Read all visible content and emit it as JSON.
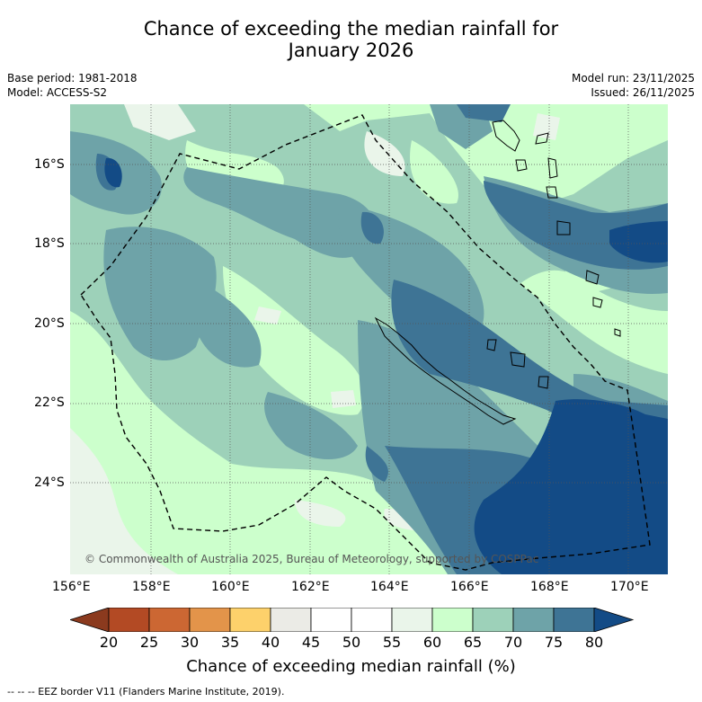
{
  "title": {
    "line1": "Chance of exceeding the median rainfall for",
    "line2": "January 2026"
  },
  "meta_left": {
    "base_period": "Base period: 1981-2018",
    "model": "Model: ACCESS-S2"
  },
  "meta_right": {
    "model_run": "Model run: 23/11/2025",
    "issued": "Issued: 26/11/2025"
  },
  "map": {
    "copyright": "© Commonwealth of Australia 2025, Bureau of Meteorology, supported by COSPPac",
    "lon_labels": [
      "156°E",
      "158°E",
      "160°E",
      "162°E",
      "164°E",
      "166°E",
      "168°E",
      "170°E"
    ],
    "lat_labels": [
      "16°S",
      "18°S",
      "20°S",
      "22°S",
      "24°S"
    ]
  },
  "colorbar": {
    "ticks": [
      "20",
      "25",
      "30",
      "35",
      "40",
      "45",
      "50",
      "55",
      "60",
      "65",
      "70",
      "75",
      "80"
    ],
    "title": "Chance of exceeding median rainfall (%)",
    "colors": [
      "#8b3a1e",
      "#b34a24",
      "#cc6733",
      "#e3944a",
      "#fdd16b",
      "#ebebe6",
      "#ffffff",
      "#ffffff",
      "#eaf5ea",
      "#ccffcc",
      "#9dd1b9",
      "#6ea3a8",
      "#3e7495",
      "#134b86"
    ]
  },
  "legend": {
    "eez_text": "-- -- -- EEZ border V11 (Flanders Marine Institute, 2019)."
  }
}
